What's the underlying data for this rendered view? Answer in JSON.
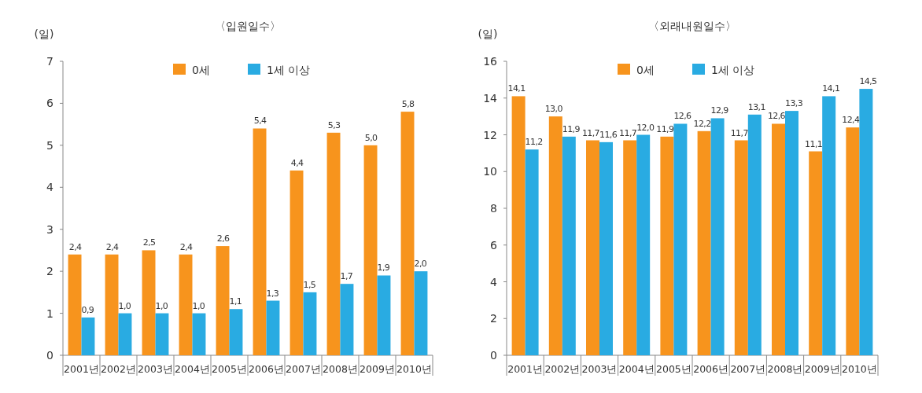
{
  "chart_data": [
    {
      "type": "bar",
      "title": "〈입원일수〉",
      "ylabel": "(일)",
      "categories": [
        "2001년",
        "2002년",
        "2003년",
        "2004년",
        "2005년",
        "2006년",
        "2007년",
        "2008년",
        "2009년",
        "2010년"
      ],
      "series": [
        {
          "name": "0세",
          "color": "#f7941d",
          "values": [
            2.4,
            2.4,
            2.5,
            2.4,
            2.6,
            5.4,
            4.4,
            5.3,
            5.0,
            5.8
          ],
          "value_labels": [
            "2,4",
            "2,4",
            "2,5",
            "2,4",
            "2,6",
            "5,4",
            "4,4",
            "5,3",
            "5,0",
            "5,8"
          ]
        },
        {
          "name": "1세 이상",
          "color": "#29abe2",
          "values": [
            0.9,
            1.0,
            1.0,
            1.0,
            1.1,
            1.3,
            1.5,
            1.7,
            1.9,
            2.0
          ],
          "value_labels": [
            "0,9",
            "1,0",
            "1,0",
            "1,0",
            "1,1",
            "1,3",
            "1,5",
            "1,7",
            "1,9",
            "2,0"
          ]
        }
      ],
      "ylim": [
        0,
        7
      ],
      "yticks": [
        0,
        1,
        2,
        3,
        4,
        5,
        6,
        7
      ],
      "grid": false,
      "legend": "top"
    },
    {
      "type": "bar",
      "title": "〈외래내원일수〉",
      "ylabel": "(일)",
      "categories": [
        "2001년",
        "2002년",
        "2003년",
        "2004년",
        "2005년",
        "2006년",
        "2007년",
        "2008년",
        "2009년",
        "2010년"
      ],
      "series": [
        {
          "name": "0세",
          "color": "#f7941d",
          "values": [
            14.1,
            13.0,
            11.7,
            11.7,
            11.9,
            12.2,
            11.7,
            12.6,
            11.1,
            12.4
          ],
          "value_labels": [
            "14,1",
            "13,0",
            "11,7",
            "11,7",
            "11,9",
            "12,2",
            "11,7",
            "12,6",
            "11,1",
            "12,4"
          ]
        },
        {
          "name": "1세 이상",
          "color": "#29abe2",
          "values": [
            11.2,
            11.9,
            11.6,
            12.0,
            12.6,
            12.9,
            13.1,
            13.3,
            14.1,
            14.5
          ],
          "value_labels": [
            "11,2",
            "11,9",
            "11,6",
            "12,0",
            "12,6",
            "12,9",
            "13,1",
            "13,3",
            "14,1",
            "14,5"
          ]
        }
      ],
      "ylim": [
        0,
        16
      ],
      "yticks": [
        0,
        2,
        4,
        6,
        8,
        10,
        12,
        14,
        16
      ],
      "grid": false,
      "legend": "top"
    }
  ]
}
